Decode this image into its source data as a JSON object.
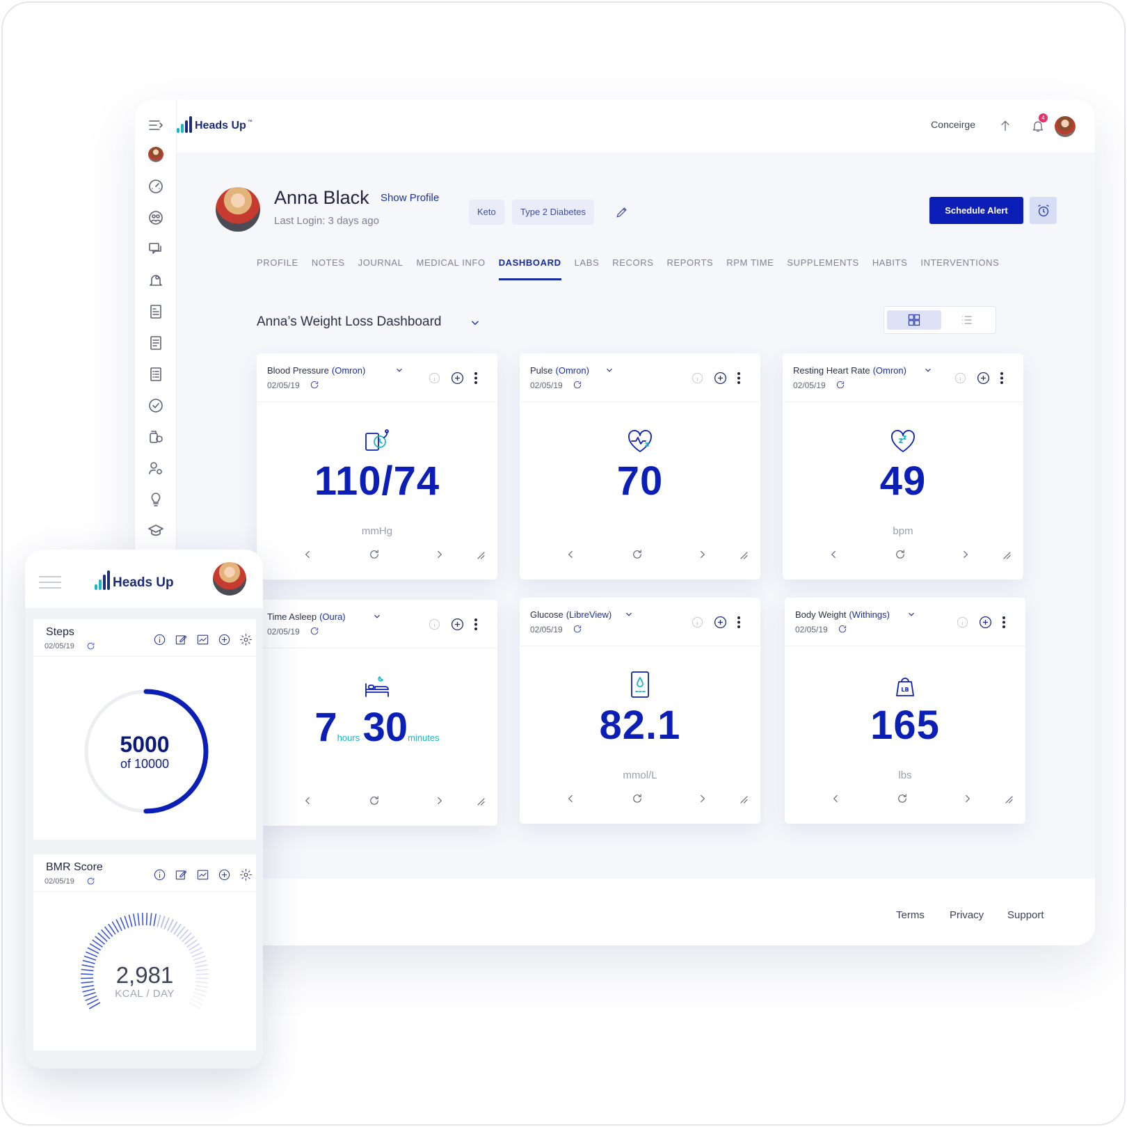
{
  "app": {
    "brand": "Heads Up",
    "brand_tm": "™",
    "colors": {
      "primary": "#0b1fb6",
      "accent_teal": "#19b6c6",
      "badge": "#e8306a"
    }
  },
  "topbar": {
    "concierge_label": "Conceirge",
    "notification_count": "4"
  },
  "patient": {
    "name": "Anna Black",
    "show_profile": "Show Profile",
    "last_login": "Last Login: 3 days ago",
    "tags": [
      "Keto",
      "Type 2 Diabetes"
    ],
    "schedule_alert": "Schedule Alert"
  },
  "tabs": [
    "PROFILE",
    "NOTES",
    "JOURNAL",
    "MEDICAL INFO",
    "DASHBOARD",
    "LABS",
    "RECORS",
    "REPORTS",
    "RPM TIME",
    "SUPPLEMENTS",
    "HABITS",
    "INTERVENTIONS"
  ],
  "active_tab": "DASHBOARD",
  "dashboard": {
    "title": "Anna’s Weight Loss Dashboard",
    "view_mode": "grid",
    "cards": [
      {
        "title": "Blood Pressure",
        "source": "(Omron)",
        "date": "02/05/19",
        "value": "110/74",
        "unit": "mmHg",
        "icon": "blood-pressure-icon"
      },
      {
        "title": "Pulse",
        "source": "(Omron)",
        "date": "02/05/19",
        "value": "70",
        "unit": "",
        "icon": "heart-pulse-icon"
      },
      {
        "title": "Resting Heart Rate",
        "source": "(Omron)",
        "date": "02/05/19",
        "value": "49",
        "unit": "bpm",
        "icon": "heart-sleep-icon"
      },
      {
        "title": "Time Asleep",
        "source": "(Oura)",
        "date": "02/05/19",
        "hours": "7",
        "hours_label": "hours",
        "minutes": "30",
        "minutes_label": "minutes",
        "icon": "bed-icon"
      },
      {
        "title": "Glucose",
        "source": "(LibreView)",
        "date": "02/05/19",
        "value": "82.1",
        "unit": "mmol/L",
        "icon": "glucose-meter-icon"
      },
      {
        "title": "Body Weight",
        "source": "(Withings)",
        "date": "02/05/19",
        "value": "165",
        "unit": "lbs",
        "icon": "weight-lb-icon"
      }
    ]
  },
  "footer": {
    "terms": "Terms",
    "privacy": "Privacy",
    "support": "Support"
  },
  "mobile": {
    "brand": "Heads Up",
    "steps": {
      "title": "Steps",
      "date": "02/05/19",
      "value": "5000",
      "of_label": "of 10000",
      "progress": 0.5
    },
    "bmr": {
      "title": "BMR Score",
      "date": "02/05/19",
      "value": "2,981",
      "unit": "KCAL / DAY"
    }
  }
}
